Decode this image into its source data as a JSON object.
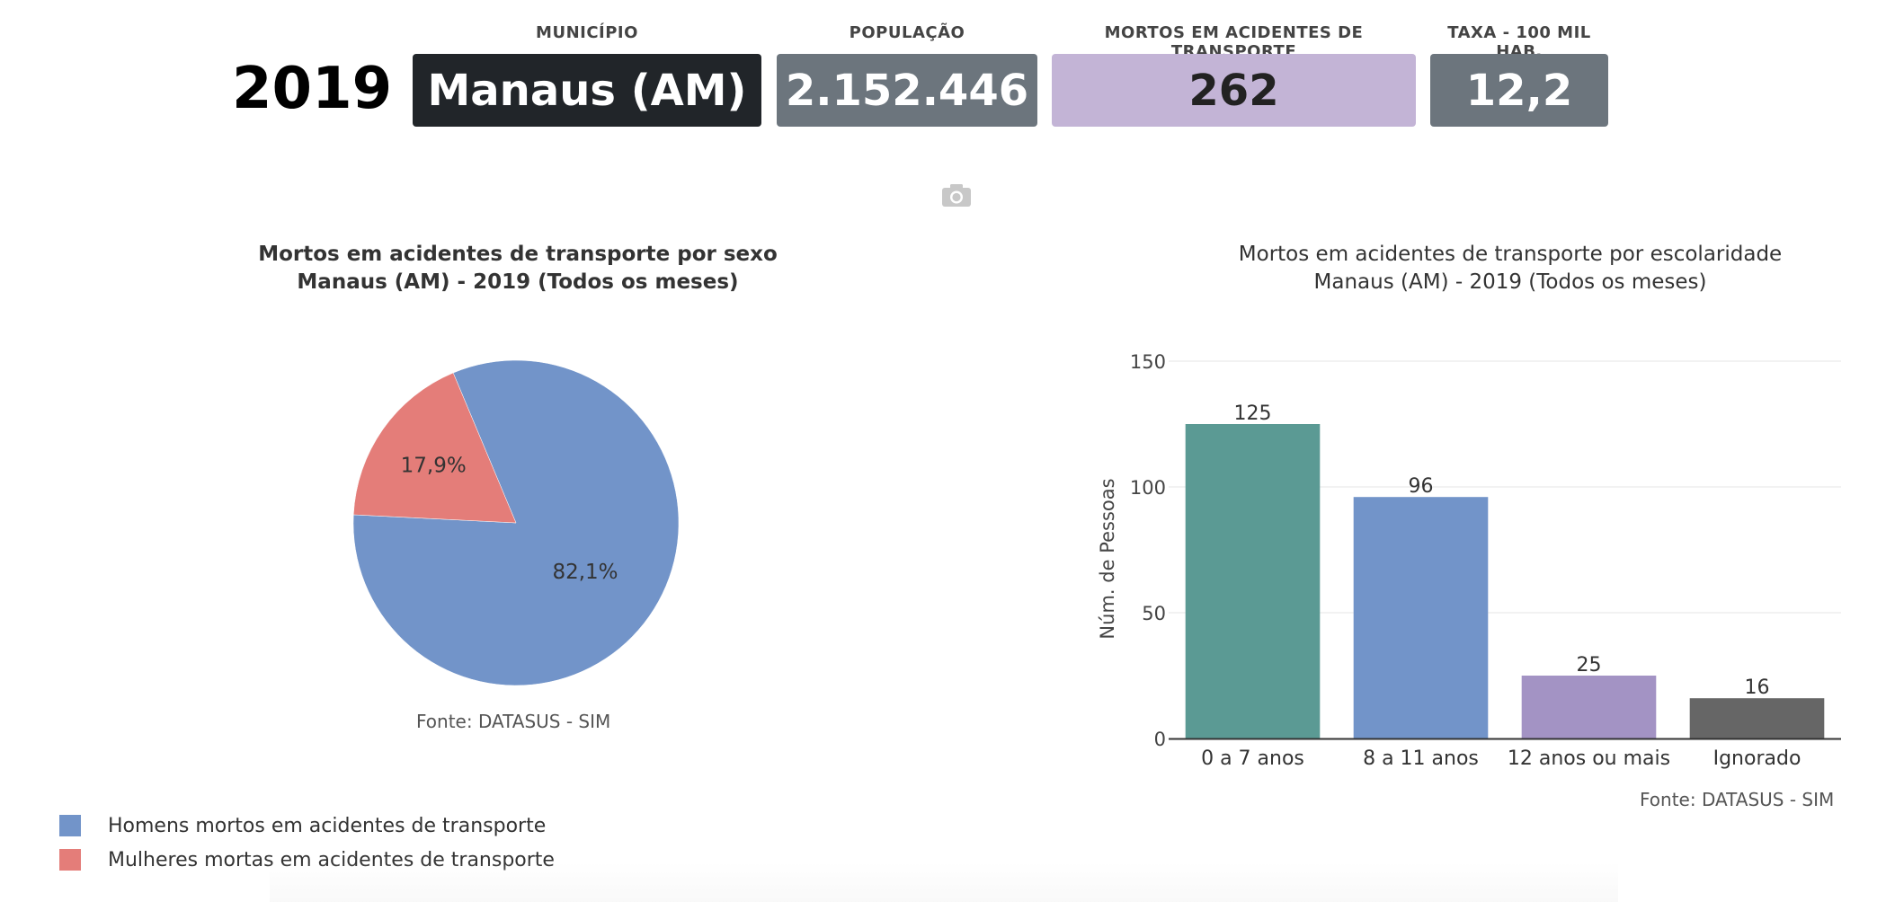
{
  "header": {
    "year": "2019",
    "kpis": [
      {
        "label": "MUNICÍPIO",
        "value": "Manaus (AM)",
        "color": "#212529",
        "text_color": "#ffffff"
      },
      {
        "label": "POPULAÇÃO",
        "value": "2.152.446",
        "color": "#6c757d",
        "text_color": "#ffffff"
      },
      {
        "label": "MORTOS EM ACIDENTES DE TRANSPORTE",
        "value": "262",
        "color": "#c3b4d6",
        "text_color": "#222222"
      },
      {
        "label": "TAXA - 100 MIL HAB.",
        "value": "12,2",
        "color": "#6c757d",
        "text_color": "#ffffff"
      }
    ],
    "camera_icon": "camera-icon"
  },
  "pie": {
    "title_line1": "Mortos em acidentes de transporte por sexo",
    "title_line2": "Manaus (AM) - 2019 (Todos os meses)",
    "source": "Fonte: DATASUS - SIM",
    "legend": [
      {
        "label": "Homens mortos em acidentes de transporte",
        "color": "#7294c9"
      },
      {
        "label": "Mulheres mortas em acidentes de transporte",
        "color": "#e47d79"
      }
    ]
  },
  "bar": {
    "title_line1": "Mortos em acidentes de transporte por escolaridade",
    "title_line2": "Manaus (AM) - 2019 (Todos os meses)",
    "source": "Fonte: DATASUS - SIM"
  },
  "chart_data": [
    {
      "type": "pie",
      "title": "Mortos em acidentes de transporte por sexo Manaus (AM) - 2019 (Todos os meses)",
      "labels": [
        "Homens mortos em acidentes de transporte",
        "Mulheres mortas em acidentes de transporte"
      ],
      "values": [
        82.1,
        17.9
      ],
      "value_labels": [
        "82,1%",
        "17,9%"
      ],
      "colors": [
        "#7294c9",
        "#e47d79"
      ],
      "legend_position": "bottom-left"
    },
    {
      "type": "bar",
      "title": "Mortos em acidentes de transporte por escolaridade Manaus (AM) - 2019 (Todos os meses)",
      "categories": [
        "0 a 7 anos",
        "8 a 11 anos",
        "12 anos ou mais",
        "Ignorado"
      ],
      "values": [
        125,
        96,
        25,
        16
      ],
      "colors": [
        "#5b9a94",
        "#7294c9",
        "#a393c4",
        "#666666"
      ],
      "ylabel": "Núm. de Pessoas",
      "xlabel": "",
      "ylim": [
        0,
        150
      ],
      "yticks": [
        0,
        50,
        100,
        150
      ],
      "grid": true
    }
  ]
}
